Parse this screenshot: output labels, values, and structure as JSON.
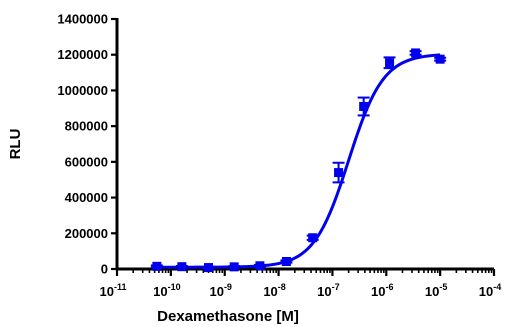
{
  "chart_data": {
    "type": "scatter",
    "xlabel": "Dexamethasone [M]",
    "ylabel": "RLU",
    "xscale": "log",
    "xlim": [
      1e-11,
      0.0001
    ],
    "ylim": [
      0,
      1400000
    ],
    "yticks": [
      "0",
      "200000",
      "400000",
      "600000",
      "800000",
      "1000000",
      "1200000",
      "1400000"
    ],
    "xticks": [
      {
        "base": "10",
        "exp": "-11",
        "value": 1e-11
      },
      {
        "base": "10",
        "exp": "-10",
        "value": 1e-10
      },
      {
        "base": "10",
        "exp": "-9",
        "value": 1e-09
      },
      {
        "base": "10",
        "exp": "-8",
        "value": 1e-08
      },
      {
        "base": "10",
        "exp": "-7",
        "value": 1e-07
      },
      {
        "base": "10",
        "exp": "-6",
        "value": 1e-06
      },
      {
        "base": "10",
        "exp": "-5",
        "value": 1e-05
      },
      {
        "base": "10",
        "exp": "-4",
        "value": 0.0001
      }
    ],
    "color": "#0000ee",
    "grid": false,
    "legend": "none",
    "points": [
      {
        "x": 5.5e-11,
        "y": 15000,
        "err": 5000
      },
      {
        "x": 1.6e-10,
        "y": 13000,
        "err": 4000
      },
      {
        "x": 5e-10,
        "y": 8000,
        "err": 3000
      },
      {
        "x": 1.5e-09,
        "y": 12000,
        "err": 4000
      },
      {
        "x": 4.5e-09,
        "y": 18000,
        "err": 5000
      },
      {
        "x": 1.4e-08,
        "y": 42000,
        "err": 6000
      },
      {
        "x": 4.3e-08,
        "y": 175000,
        "err": 12000
      },
      {
        "x": 1.3e-07,
        "y": 540000,
        "err": 55000
      },
      {
        "x": 3.8e-07,
        "y": 910000,
        "err": 50000
      },
      {
        "x": 1.15e-06,
        "y": 1155000,
        "err": 30000
      },
      {
        "x": 3.5e-06,
        "y": 1210000,
        "err": 10000
      },
      {
        "x": 1e-05,
        "y": 1175000,
        "err": 8000
      }
    ],
    "fit": {
      "model": "sigmoidal dose-response",
      "bottom": 10000,
      "top": 1205000,
      "logEC50": -6.7,
      "hill": 1.35
    }
  }
}
